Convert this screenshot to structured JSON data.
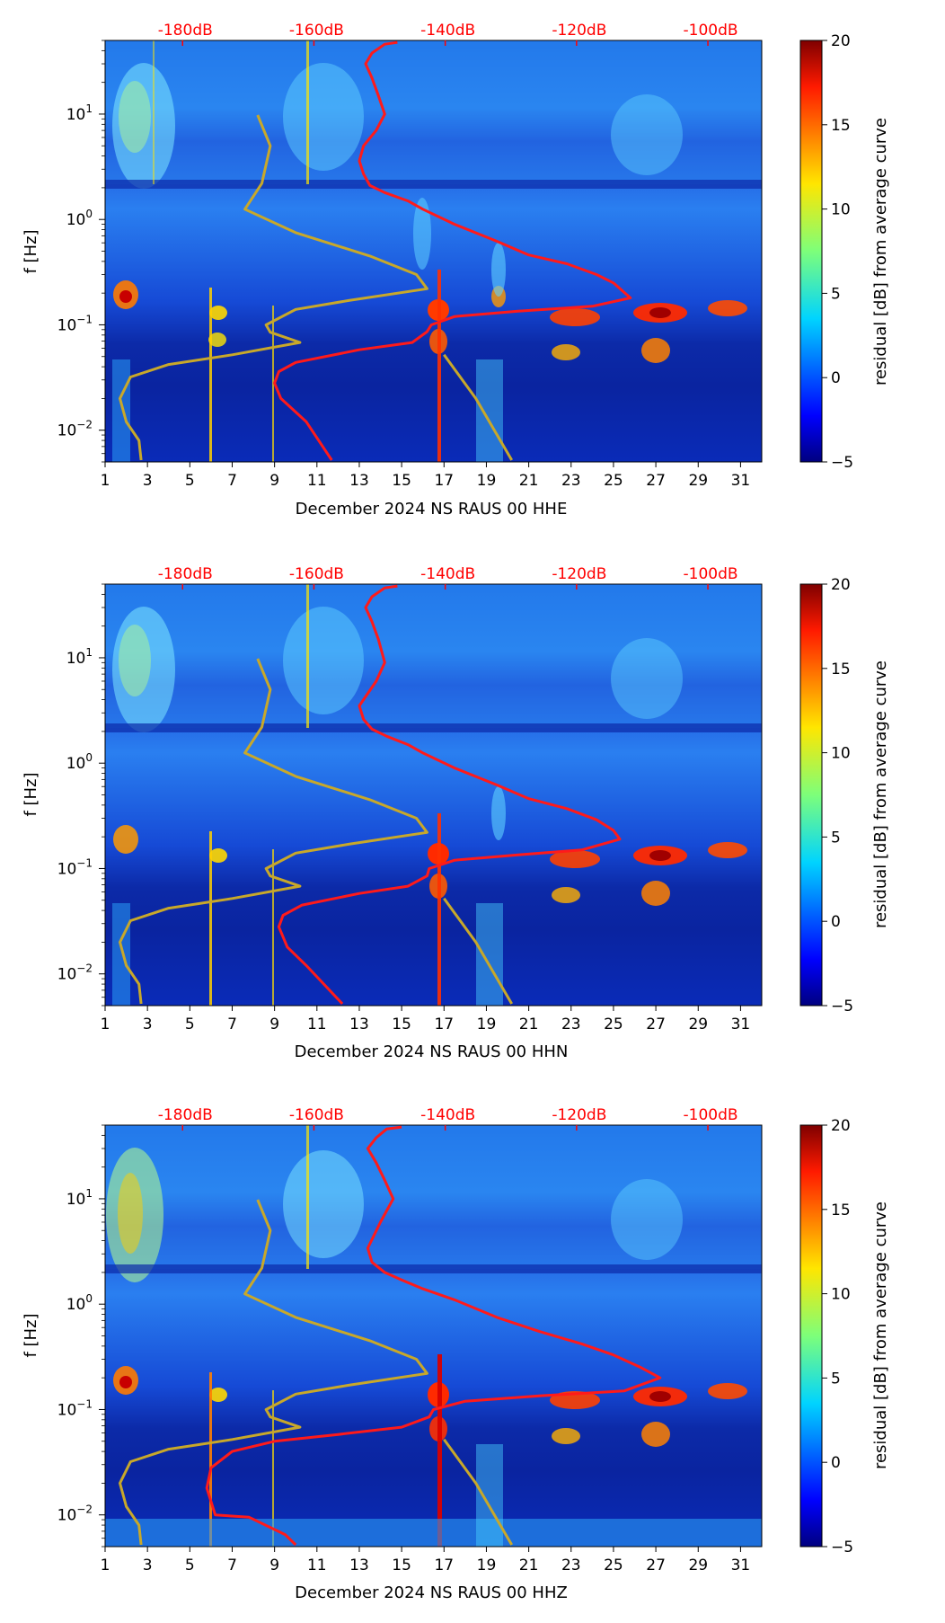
{
  "chart_data": [
    {
      "type": "heatmap",
      "xlabel": "December 2024 NS RAUS 00 HHE",
      "ylabel": "f [Hz]",
      "x_ticks": [
        "1",
        "3",
        "5",
        "7",
        "9",
        "11",
        "13",
        "15",
        "17",
        "19",
        "21",
        "23",
        "25",
        "27",
        "29",
        "31"
      ],
      "x_range": [
        1,
        32
      ],
      "y_scale": "log",
      "y_range": [
        0.005,
        50
      ],
      "y_ticks": [
        "10^-2",
        "10^-1",
        "10^0",
        "10^1"
      ],
      "top_axis": {
        "labels": [
          "-180dB",
          "-160dB",
          "-140dB",
          "-120dB",
          "-100dB"
        ],
        "color": "#ff0000"
      },
      "colorbar": {
        "label": "residual [dB] from average curve",
        "range": [
          -5,
          20
        ],
        "ticks": [
          "−5",
          "0",
          "5",
          "10",
          "15",
          "20"
        ]
      },
      "series": [
        {
          "name": "PSD curve (red)",
          "color": "#ff1a1a",
          "points": [
            [
              14.8,
              48
            ],
            [
              14.2,
              46
            ],
            [
              13.6,
              38
            ],
            [
              13.3,
              30
            ],
            [
              13.6,
              22
            ],
            [
              13.9,
              15
            ],
            [
              14.2,
              10
            ],
            [
              13.8,
              7
            ],
            [
              13.2,
              5
            ],
            [
              13.0,
              3.6
            ],
            [
              13.2,
              2.7
            ],
            [
              13.5,
              2.1
            ],
            [
              14.2,
              1.8
            ],
            [
              15.3,
              1.5
            ],
            [
              16.0,
              1.25
            ],
            [
              17.5,
              0.9
            ],
            [
              19.5,
              0.62
            ],
            [
              21.0,
              0.46
            ],
            [
              22.8,
              0.38
            ],
            [
              24.2,
              0.3
            ],
            [
              25.0,
              0.25
            ],
            [
              25.8,
              0.18
            ],
            [
              24.0,
              0.15
            ],
            [
              20.5,
              0.135
            ],
            [
              17.5,
              0.12
            ],
            [
              16.4,
              0.1
            ],
            [
              16.2,
              0.086
            ],
            [
              15.5,
              0.068
            ],
            [
              13.0,
              0.058
            ],
            [
              10.0,
              0.044
            ],
            [
              9.2,
              0.036
            ],
            [
              9.0,
              0.028
            ],
            [
              9.3,
              0.02
            ],
            [
              10.5,
              0.012
            ],
            [
              11.7,
              0.0052
            ]
          ]
        },
        {
          "name": "Noise model (olive)",
          "color": "#c8a82a",
          "points": [
            [
              8.2,
              9.8
            ],
            [
              8.8,
              5.0
            ],
            [
              8.4,
              2.2
            ],
            [
              7.6,
              1.25
            ],
            [
              10.0,
              0.75
            ],
            [
              13.5,
              0.45
            ],
            [
              15.7,
              0.3
            ],
            [
              16.2,
              0.22
            ],
            [
              12.5,
              0.17
            ],
            [
              10.0,
              0.14
            ],
            [
              8.6,
              0.1
            ],
            [
              8.8,
              0.085
            ],
            [
              10.2,
              0.068
            ],
            [
              7.0,
              0.052
            ],
            [
              4.0,
              0.042
            ],
            [
              2.2,
              0.032
            ],
            [
              1.7,
              0.02
            ],
            [
              2.0,
              0.012
            ],
            [
              2.6,
              0.008
            ],
            [
              2.7,
              0.0052
            ]
          ]
        },
        {
          "name": "Noise model (olive, lower)",
          "color": "#c8a82a",
          "points": [
            [
              17.0,
              0.052
            ],
            [
              18.5,
              0.02
            ],
            [
              20.2,
              0.0052
            ]
          ]
        }
      ]
    },
    {
      "type": "heatmap",
      "xlabel": "December 2024 NS RAUS 00 HHN",
      "ylabel": "f [Hz]",
      "x_ticks": [
        "1",
        "3",
        "5",
        "7",
        "9",
        "11",
        "13",
        "15",
        "17",
        "19",
        "21",
        "23",
        "25",
        "27",
        "29",
        "31"
      ],
      "x_range": [
        1,
        32
      ],
      "y_scale": "log",
      "y_range": [
        0.005,
        50
      ],
      "y_ticks": [
        "10^-2",
        "10^-1",
        "10^0",
        "10^1"
      ],
      "top_axis": {
        "labels": [
          "-180dB",
          "-160dB",
          "-140dB",
          "-120dB",
          "-100dB"
        ],
        "color": "#ff0000"
      },
      "colorbar": {
        "label": "residual [dB] from average curve",
        "range": [
          -5,
          20
        ],
        "ticks": [
          "−5",
          "0",
          "5",
          "10",
          "15",
          "20"
        ]
      },
      "series": [
        {
          "name": "PSD curve (red)",
          "color": "#ff1a1a",
          "points": [
            [
              14.8,
              48
            ],
            [
              14.2,
              46
            ],
            [
              13.6,
              38
            ],
            [
              13.3,
              30
            ],
            [
              13.6,
              22
            ],
            [
              13.9,
              15
            ],
            [
              14.2,
              9
            ],
            [
              13.8,
              6
            ],
            [
              13.0,
              3.5
            ],
            [
              13.2,
              2.6
            ],
            [
              13.6,
              2.1
            ],
            [
              14.3,
              1.8
            ],
            [
              15.3,
              1.5
            ],
            [
              16.0,
              1.25
            ],
            [
              17.5,
              0.9
            ],
            [
              19.5,
              0.62
            ],
            [
              21.0,
              0.46
            ],
            [
              22.8,
              0.37
            ],
            [
              24.2,
              0.29
            ],
            [
              25.0,
              0.23
            ],
            [
              25.3,
              0.19
            ],
            [
              23.5,
              0.15
            ],
            [
              20.5,
              0.135
            ],
            [
              17.5,
              0.12
            ],
            [
              16.3,
              0.1
            ],
            [
              16.2,
              0.085
            ],
            [
              15.3,
              0.068
            ],
            [
              13.0,
              0.058
            ],
            [
              10.3,
              0.045
            ],
            [
              9.4,
              0.036
            ],
            [
              9.2,
              0.028
            ],
            [
              9.6,
              0.018
            ],
            [
              10.5,
              0.012
            ],
            [
              12.2,
              0.0052
            ]
          ]
        },
        {
          "name": "Noise model (olive)",
          "color": "#c8a82a",
          "points": [
            [
              8.2,
              9.8
            ],
            [
              8.8,
              5.0
            ],
            [
              8.4,
              2.2
            ],
            [
              7.6,
              1.25
            ],
            [
              10.0,
              0.75
            ],
            [
              13.5,
              0.45
            ],
            [
              15.7,
              0.3
            ],
            [
              16.2,
              0.22
            ],
            [
              12.5,
              0.17
            ],
            [
              10.0,
              0.14
            ],
            [
              8.6,
              0.1
            ],
            [
              8.8,
              0.085
            ],
            [
              10.2,
              0.068
            ],
            [
              7.0,
              0.052
            ],
            [
              4.0,
              0.042
            ],
            [
              2.2,
              0.032
            ],
            [
              1.7,
              0.02
            ],
            [
              2.0,
              0.012
            ],
            [
              2.6,
              0.008
            ],
            [
              2.7,
              0.0052
            ]
          ]
        },
        {
          "name": "Noise model (olive, lower)",
          "color": "#c8a82a",
          "points": [
            [
              17.0,
              0.052
            ],
            [
              18.5,
              0.02
            ],
            [
              20.2,
              0.0052
            ]
          ]
        }
      ]
    },
    {
      "type": "heatmap",
      "xlabel": "December 2024 NS RAUS 00 HHZ",
      "ylabel": "f [Hz]",
      "x_ticks": [
        "1",
        "3",
        "5",
        "7",
        "9",
        "11",
        "13",
        "15",
        "17",
        "19",
        "21",
        "23",
        "25",
        "27",
        "29",
        "31"
      ],
      "x_range": [
        1,
        32
      ],
      "y_scale": "log",
      "y_range": [
        0.005,
        50
      ],
      "y_ticks": [
        "10^-2",
        "10^-1",
        "10^0",
        "10^1"
      ],
      "top_axis": {
        "labels": [
          "-180dB",
          "-160dB",
          "-140dB",
          "-120dB",
          "-100dB"
        ],
        "color": "#ff0000"
      },
      "colorbar": {
        "label": "residual [dB] from average curve",
        "range": [
          -5,
          20
        ],
        "ticks": [
          "−5",
          "0",
          "5",
          "10",
          "15",
          "20"
        ]
      },
      "series": [
        {
          "name": "PSD curve (red)",
          "color": "#ff1a1a",
          "points": [
            [
              15.0,
              48
            ],
            [
              14.3,
              46
            ],
            [
              13.8,
              38
            ],
            [
              13.4,
              30
            ],
            [
              13.8,
              22
            ],
            [
              14.2,
              15
            ],
            [
              14.6,
              10
            ],
            [
              14.0,
              6
            ],
            [
              13.4,
              3.4
            ],
            [
              13.6,
              2.5
            ],
            [
              14.2,
              2.0
            ],
            [
              15.0,
              1.7
            ],
            [
              16.0,
              1.4
            ],
            [
              17.5,
              1.1
            ],
            [
              19.5,
              0.75
            ],
            [
              21.5,
              0.55
            ],
            [
              23.5,
              0.42
            ],
            [
              25.0,
              0.33
            ],
            [
              26.3,
              0.25
            ],
            [
              27.2,
              0.2
            ],
            [
              25.5,
              0.15
            ],
            [
              21.5,
              0.135
            ],
            [
              18.0,
              0.12
            ],
            [
              16.5,
              0.1
            ],
            [
              16.3,
              0.085
            ],
            [
              15.0,
              0.068
            ],
            [
              12.0,
              0.058
            ],
            [
              9.0,
              0.05
            ],
            [
              7.0,
              0.04
            ],
            [
              6.0,
              0.028
            ],
            [
              5.8,
              0.018
            ],
            [
              6.2,
              0.01
            ],
            [
              7.8,
              0.0095
            ],
            [
              9.5,
              0.0065
            ],
            [
              10.0,
              0.0052
            ]
          ]
        },
        {
          "name": "Noise model (olive)",
          "color": "#c8a82a",
          "points": [
            [
              8.2,
              9.8
            ],
            [
              8.8,
              5.0
            ],
            [
              8.4,
              2.2
            ],
            [
              7.6,
              1.25
            ],
            [
              10.0,
              0.75
            ],
            [
              13.5,
              0.45
            ],
            [
              15.7,
              0.3
            ],
            [
              16.2,
              0.22
            ],
            [
              12.5,
              0.17
            ],
            [
              10.0,
              0.14
            ],
            [
              8.6,
              0.1
            ],
            [
              8.8,
              0.085
            ],
            [
              10.2,
              0.068
            ],
            [
              7.0,
              0.052
            ],
            [
              4.0,
              0.042
            ],
            [
              2.2,
              0.032
            ],
            [
              1.7,
              0.02
            ],
            [
              2.0,
              0.012
            ],
            [
              2.6,
              0.008
            ],
            [
              2.7,
              0.0052
            ]
          ]
        },
        {
          "name": "Noise model (olive, lower)",
          "color": "#c8a82a",
          "points": [
            [
              17.0,
              0.052
            ],
            [
              18.5,
              0.02
            ],
            [
              20.2,
              0.0052
            ]
          ]
        }
      ]
    }
  ]
}
